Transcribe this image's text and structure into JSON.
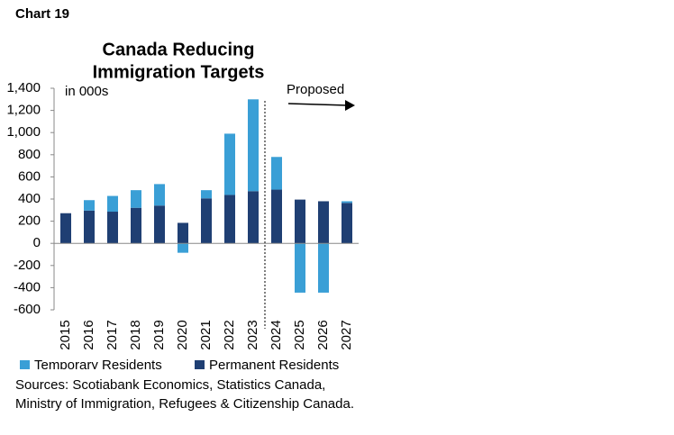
{
  "chart_data": {
    "type": "stacked-bar",
    "label": "Chart 19",
    "title": [
      "Canada Reducing",
      "Immigration Targets"
    ],
    "unit": "in 000s",
    "annotation": "Proposed",
    "source": "Sources: Scotiabank Economics, Statistics Canada, Ministry of Immigration, Refugees & Citizenship Canada.",
    "categories": [
      "2015",
      "2016",
      "2017",
      "2018",
      "2019",
      "2020",
      "2021",
      "2022",
      "2023",
      "2024",
      "2025",
      "2026",
      "2027"
    ],
    "series": [
      {
        "name": "Temporary Residents",
        "color": "#3a9fd6",
        "values": [
          0,
          94,
          142,
          159,
          194,
          -85,
          74,
          553,
          829,
          295,
          -445,
          -445,
          15
        ]
      },
      {
        "name": "Permanent Residents",
        "color": "#1f3f73",
        "values": [
          272,
          296,
          286,
          321,
          341,
          185,
          406,
          437,
          471,
          485,
          395,
          380,
          365
        ]
      }
    ],
    "ylim": [
      -600,
      1400
    ],
    "yticks": [
      -600,
      -400,
      -200,
      0,
      200,
      400,
      600,
      800,
      {
        "value": 1000,
        "label": "1,000"
      },
      {
        "value": 1200,
        "label": "1,200"
      },
      {
        "value": 1400,
        "label": "1,400"
      }
    ]
  }
}
